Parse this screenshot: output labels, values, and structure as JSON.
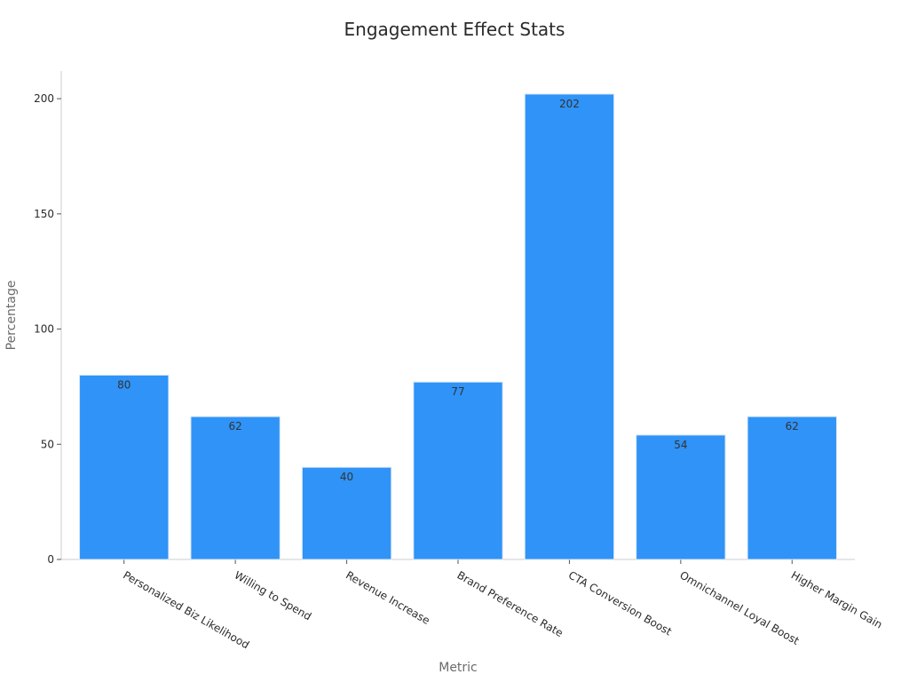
{
  "chart_data": {
    "type": "bar",
    "title": "Engagement Effect Stats",
    "xlabel": "Metric",
    "ylabel": "Percentage",
    "categories": [
      "Personalized Biz Likelihood",
      "Willing to Spend",
      "Revenue Increase",
      "Brand Preference Rate",
      "CTA Conversion Boost",
      "Omnichannel Loyal Boost",
      "Higher Margin Gain"
    ],
    "values": [
      80,
      62,
      40,
      77,
      202,
      54,
      62
    ],
    "data_labels": [
      "80",
      "62",
      "40",
      "77",
      "202",
      "54",
      "62"
    ],
    "ylim": [
      0,
      212
    ],
    "yticks": [
      0,
      50,
      100,
      150,
      200
    ],
    "ytick_labels": [
      "0",
      "50",
      "100",
      "150",
      "200"
    ],
    "grid": false,
    "legend": "none",
    "colors": {
      "bar": "#2f93f7",
      "bar_edge": "#d6e6f7"
    }
  }
}
